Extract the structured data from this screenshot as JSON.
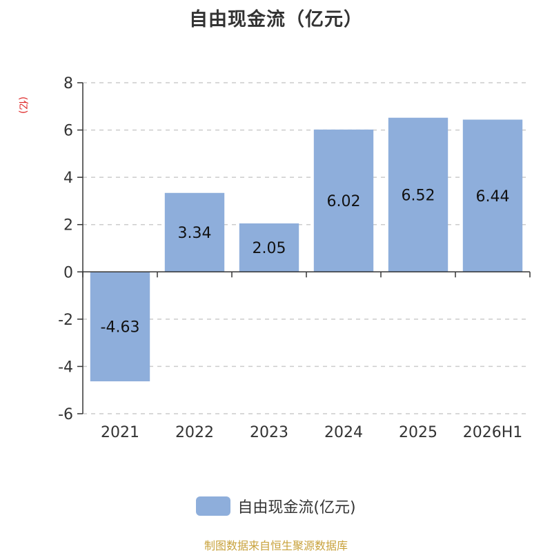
{
  "source_note": "制图数据来自恒生聚源数据库",
  "chart_data": {
    "type": "bar",
    "title": "自由现金流（亿元）",
    "ylabel": "(亿)",
    "categories": [
      "2021",
      "2022",
      "2023",
      "2024",
      "2025",
      "2026H1"
    ],
    "series": [
      {
        "name": "自由现金流(亿元)",
        "values": [
          -4.63,
          3.34,
          2.05,
          6.02,
          6.52,
          6.44
        ],
        "color": "#8eaedb"
      }
    ],
    "ylim": [
      -6,
      8
    ],
    "yticks": [
      -6,
      -4,
      -2,
      0,
      2,
      4,
      6,
      8
    ],
    "grid": true,
    "legend_position": "bottom-center"
  }
}
